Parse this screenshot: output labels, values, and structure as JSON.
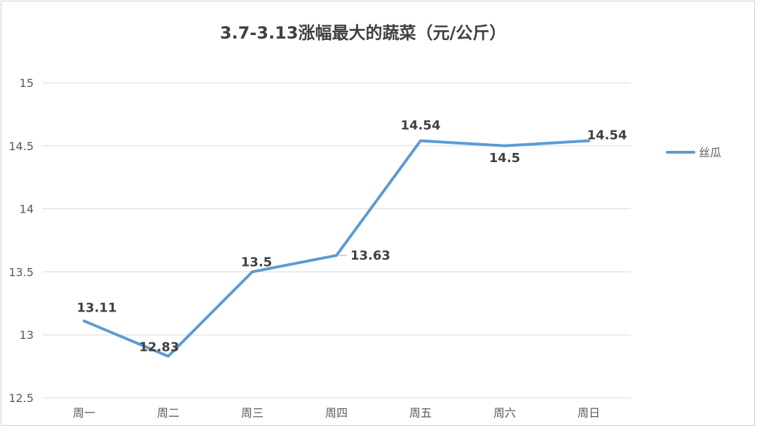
{
  "chart_data": {
    "type": "line",
    "title": "3.7-3.13涨幅最大的蔬菜（元/公斤）",
    "xlabel": "",
    "ylabel": "",
    "categories": [
      "周一",
      "周二",
      "周三",
      "周四",
      "周五",
      "周六",
      "周日"
    ],
    "series": [
      {
        "name": "丝瓜",
        "values": [
          13.11,
          12.83,
          13.5,
          13.63,
          14.54,
          14.5,
          14.54
        ],
        "color": "#5B9BD5"
      }
    ],
    "ylim": [
      12.5,
      15
    ],
    "yticks": [
      "12.5",
      "13",
      "13.5",
      "14",
      "14.5",
      "15"
    ],
    "data_labels": [
      "13.11",
      "12.83",
      "13.5",
      "13.63",
      "14.54",
      "14.5",
      "14.54"
    ],
    "grid": true,
    "legend_position": "right",
    "colors": {
      "line": "#5B9BD5",
      "grid": "#d9d9d9",
      "title": "#404040",
      "tick": "#595959"
    }
  }
}
